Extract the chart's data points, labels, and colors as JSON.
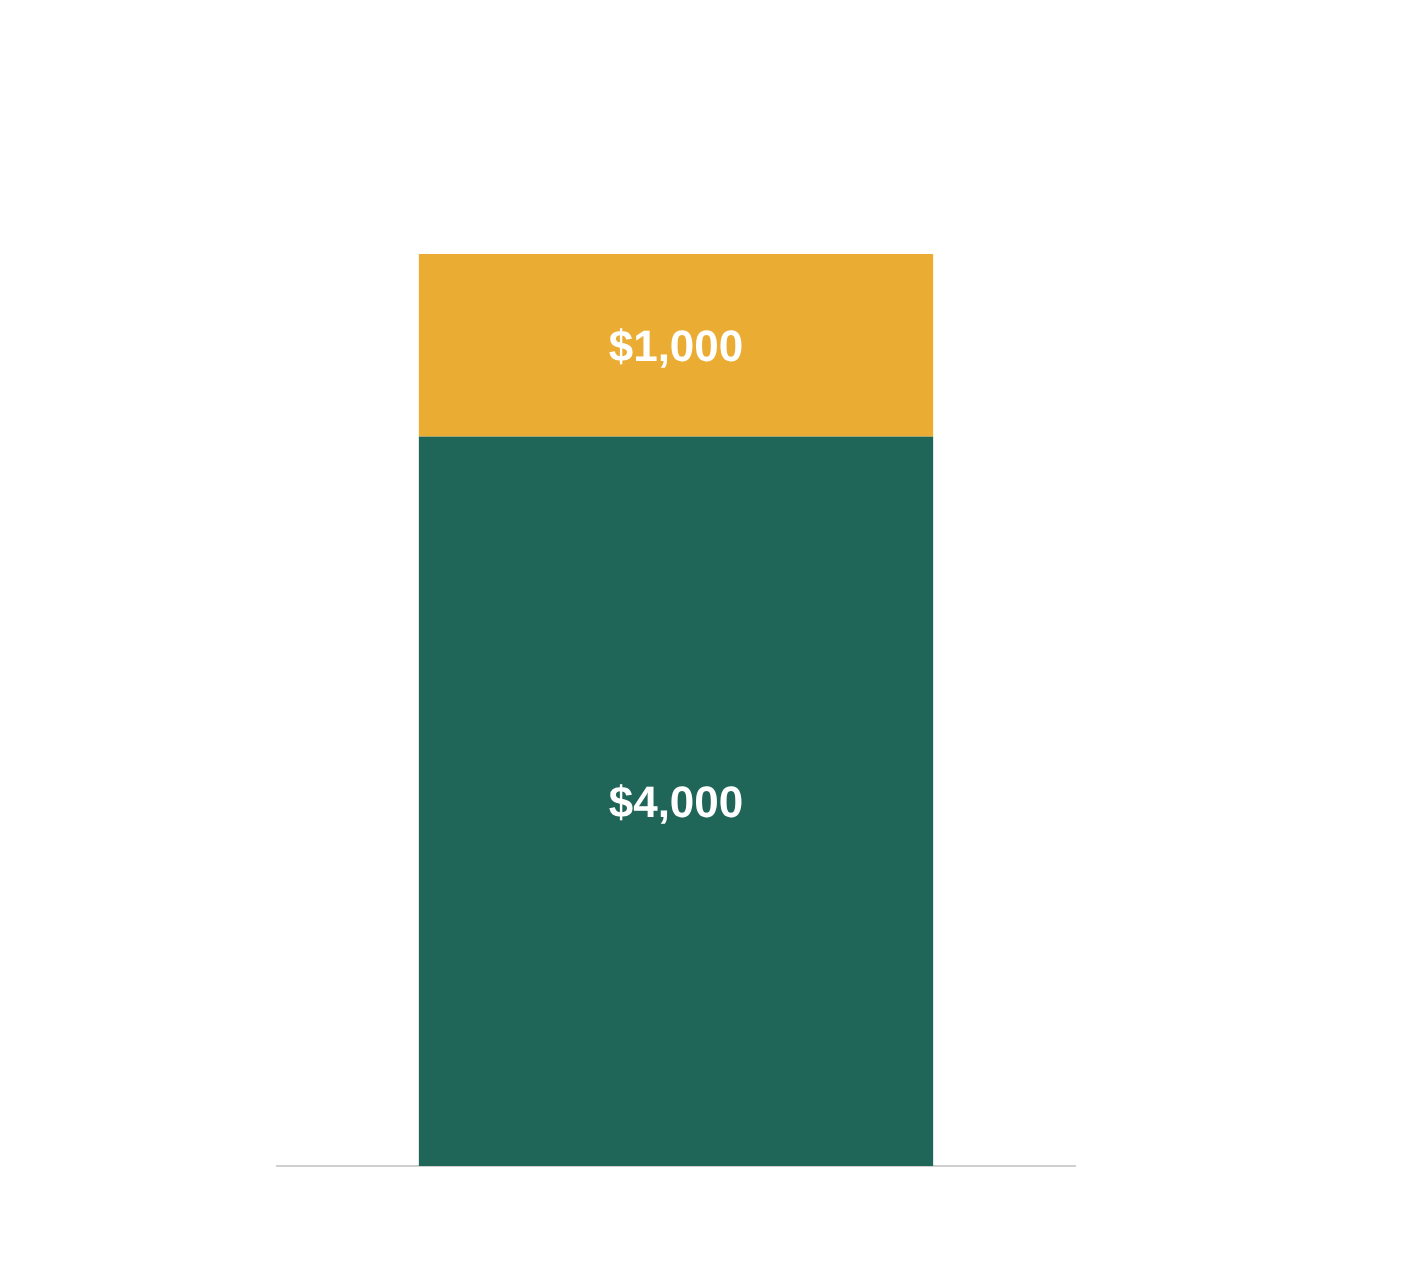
{
  "chart_data": {
    "type": "bar",
    "stacked": true,
    "categories": [
      null
    ],
    "series": [
      {
        "color": "#1f6659",
        "values": [
          4000
        ],
        "value_labels": [
          "$4,000"
        ]
      },
      {
        "color": "#eaac33",
        "values": [
          1000
        ],
        "value_labels": [
          "$1,000"
        ]
      }
    ]
  }
}
